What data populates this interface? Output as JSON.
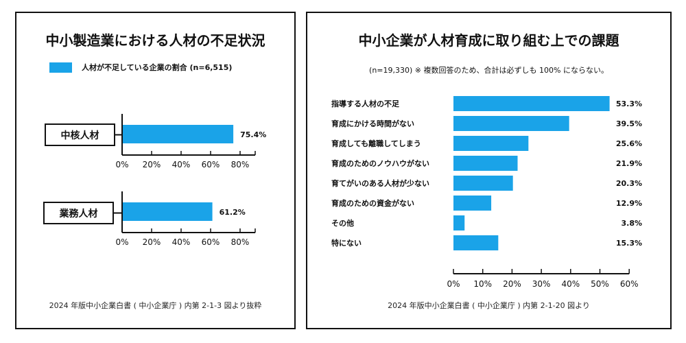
{
  "colors": {
    "bar": "#1aa3e8",
    "axis": "#111111"
  },
  "left": {
    "title": "中小製造業における人材の不足状況",
    "legend_label": "人材が不足している企業の割合 (n=6,515)",
    "source": "2024 年版中小企業白書 ( 中小企業庁 ) 内第 2-1-3 図より抜粋"
  },
  "right": {
    "title": "中小企業が人材育成に取り組む上での課題",
    "note": "(n=19,330) ※ 複数回答のため、合計は必ずしも 100% にならない。",
    "source": "2024 年版中小企業白書 ( 中小企業庁 ) 内第 2-1-20 図より"
  },
  "chart_data": [
    {
      "type": "bar",
      "orientation": "horizontal",
      "title": "中小製造業における人材の不足状況",
      "legend": [
        "人材が不足している企業の割合 (n=6,515)"
      ],
      "categories": [
        "中核人材",
        "業務人材"
      ],
      "values": [
        75.4,
        61.2
      ],
      "value_labels": [
        "75.4%",
        "61.2%"
      ],
      "xlim": [
        0,
        80
      ],
      "xticks": [
        "0%",
        "20%",
        "40%",
        "60%",
        "80%"
      ]
    },
    {
      "type": "bar",
      "orientation": "horizontal",
      "title": "中小企業が人材育成に取り組む上での課題",
      "categories": [
        "指導する人材の不足",
        "育成にかける時間がない",
        "育成しても離職してしまう",
        "育成のためのノウハウがない",
        "育てがいのある人材が少ない",
        "育成のための資金がない",
        "その他",
        "特にない"
      ],
      "values": [
        53.3,
        39.5,
        25.6,
        21.9,
        20.3,
        12.9,
        3.8,
        15.3
      ],
      "value_labels": [
        "53.3%",
        "39.5%",
        "25.6%",
        "21.9%",
        "20.3%",
        "12.9%",
        "3.8%",
        "15.3%"
      ],
      "xlim": [
        0,
        60
      ],
      "xticks": [
        "0%",
        "10%",
        "20%",
        "30%",
        "40%",
        "50%",
        "60%"
      ]
    }
  ]
}
